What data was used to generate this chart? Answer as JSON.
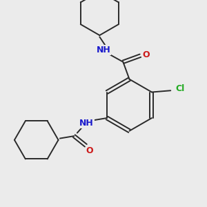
{
  "background_color": "#ebebeb",
  "bond_color": "#2a2a2a",
  "atom_colors": {
    "N": "#1a1acc",
    "O": "#cc1a1a",
    "Cl": "#22aa22"
  },
  "figsize": [
    3.0,
    3.0
  ],
  "dpi": 100
}
